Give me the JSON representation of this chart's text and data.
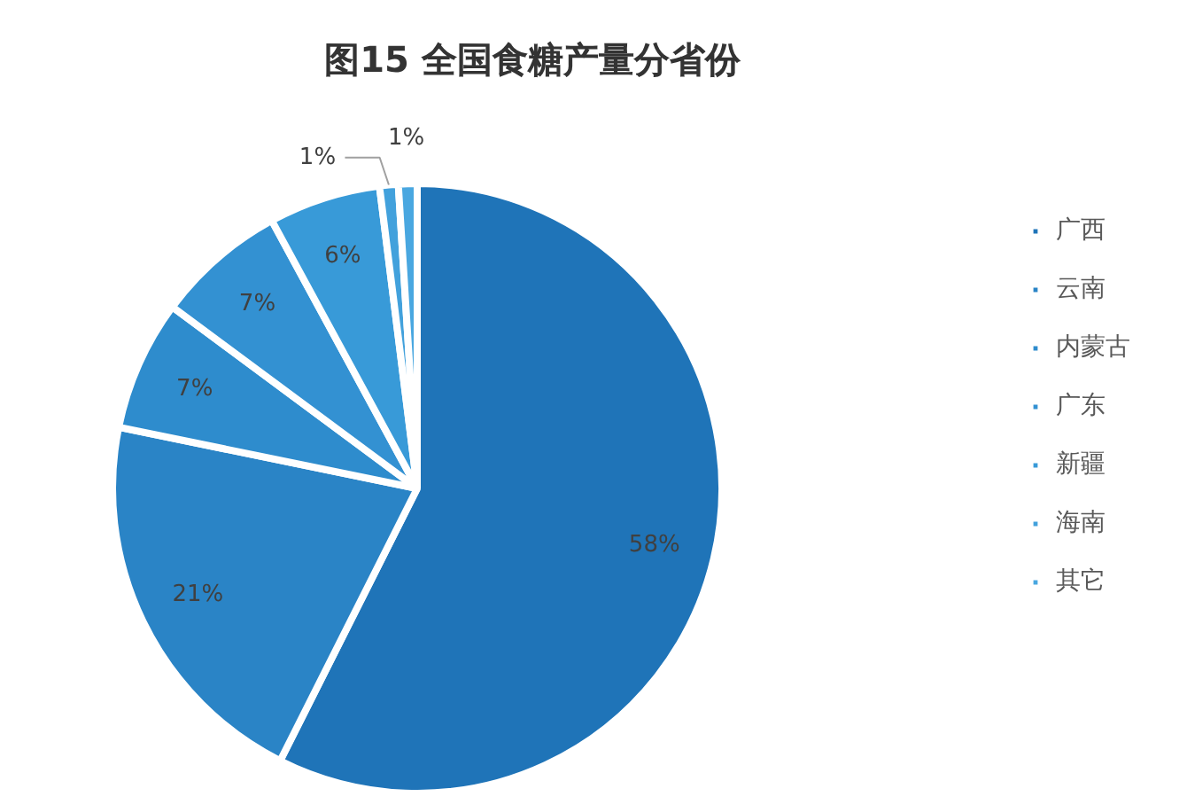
{
  "chart_data": {
    "type": "pie",
    "title": "图15 全国食糖产量分省份",
    "categories": [
      "广西",
      "云南",
      "内蒙古",
      "广东",
      "新疆",
      "海南",
      "其它"
    ],
    "values": [
      58,
      21,
      7,
      7,
      6,
      1,
      1
    ],
    "colors": [
      "#1f74b8",
      "#2a84c6",
      "#2e8ccd",
      "#3391d2",
      "#389ad8",
      "#42a1dc",
      "#49a7e0"
    ],
    "value_labels": [
      "58%",
      "21%",
      "7%",
      "7%",
      "6%",
      "1%",
      "1%"
    ],
    "legend": "right"
  }
}
